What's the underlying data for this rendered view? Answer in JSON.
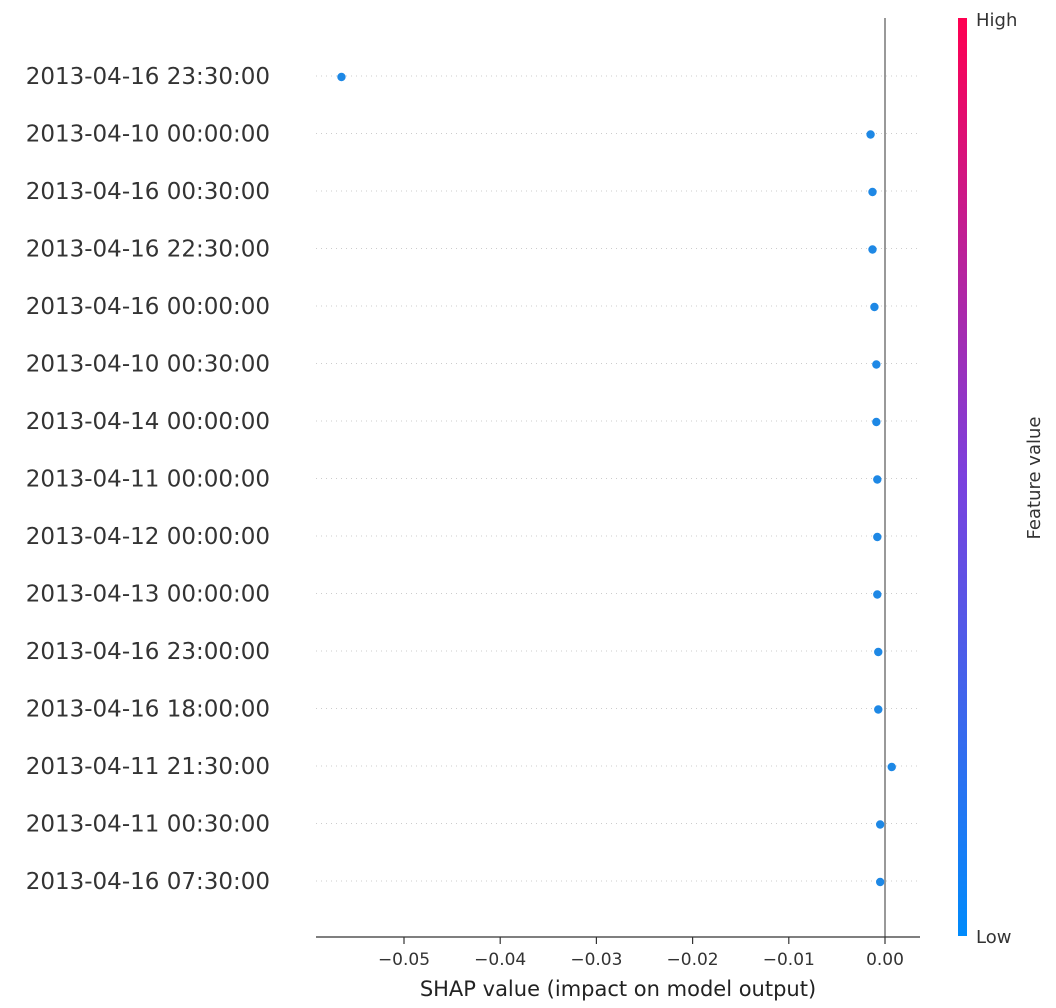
{
  "chart_data": {
    "type": "scatter",
    "xlabel": "SHAP value (impact on model output)",
    "xlim": [
      -0.06,
      0.004
    ],
    "xticks": [
      -0.05,
      -0.04,
      -0.03,
      -0.02,
      -0.01,
      0.0
    ],
    "xtick_labels": [
      "−0.05",
      "−0.04",
      "−0.03",
      "−0.02",
      "−0.01",
      "0.00"
    ],
    "grid": false,
    "features": [
      {
        "name": "2013-04-16 23:30:00",
        "shap": -0.0565,
        "feature_value": "low"
      },
      {
        "name": "2013-04-10 00:00:00",
        "shap": -0.0015,
        "feature_value": "low"
      },
      {
        "name": "2013-04-16 00:30:00",
        "shap": -0.0013,
        "feature_value": "low"
      },
      {
        "name": "2013-04-16 22:30:00",
        "shap": -0.0013,
        "feature_value": "low"
      },
      {
        "name": "2013-04-16 00:00:00",
        "shap": -0.0011,
        "feature_value": "low"
      },
      {
        "name": "2013-04-10 00:30:00",
        "shap": -0.0009,
        "feature_value": "low"
      },
      {
        "name": "2013-04-14 00:00:00",
        "shap": -0.0009,
        "feature_value": "low"
      },
      {
        "name": "2013-04-11 00:00:00",
        "shap": -0.0008,
        "feature_value": "low"
      },
      {
        "name": "2013-04-12 00:00:00",
        "shap": -0.0008,
        "feature_value": "low"
      },
      {
        "name": "2013-04-13 00:00:00",
        "shap": -0.0008,
        "feature_value": "low"
      },
      {
        "name": "2013-04-16 23:00:00",
        "shap": -0.0007,
        "feature_value": "low"
      },
      {
        "name": "2013-04-16 18:00:00",
        "shap": -0.0007,
        "feature_value": "low"
      },
      {
        "name": "2013-04-11 21:30:00",
        "shap": 0.0007,
        "feature_value": "low"
      },
      {
        "name": "2013-04-11 00:30:00",
        "shap": -0.0005,
        "feature_value": "low"
      },
      {
        "name": "2013-04-16 07:30:00",
        "shap": -0.0005,
        "feature_value": "low"
      }
    ],
    "colorbar": {
      "label": "Feature value",
      "high_label": "High",
      "low_label": "Low",
      "high_color": "#ff0051",
      "mid_color": "#7b40de",
      "low_color": "#008bfb"
    },
    "point_color": "#1e88e5",
    "zero_line_color": "#999999"
  }
}
